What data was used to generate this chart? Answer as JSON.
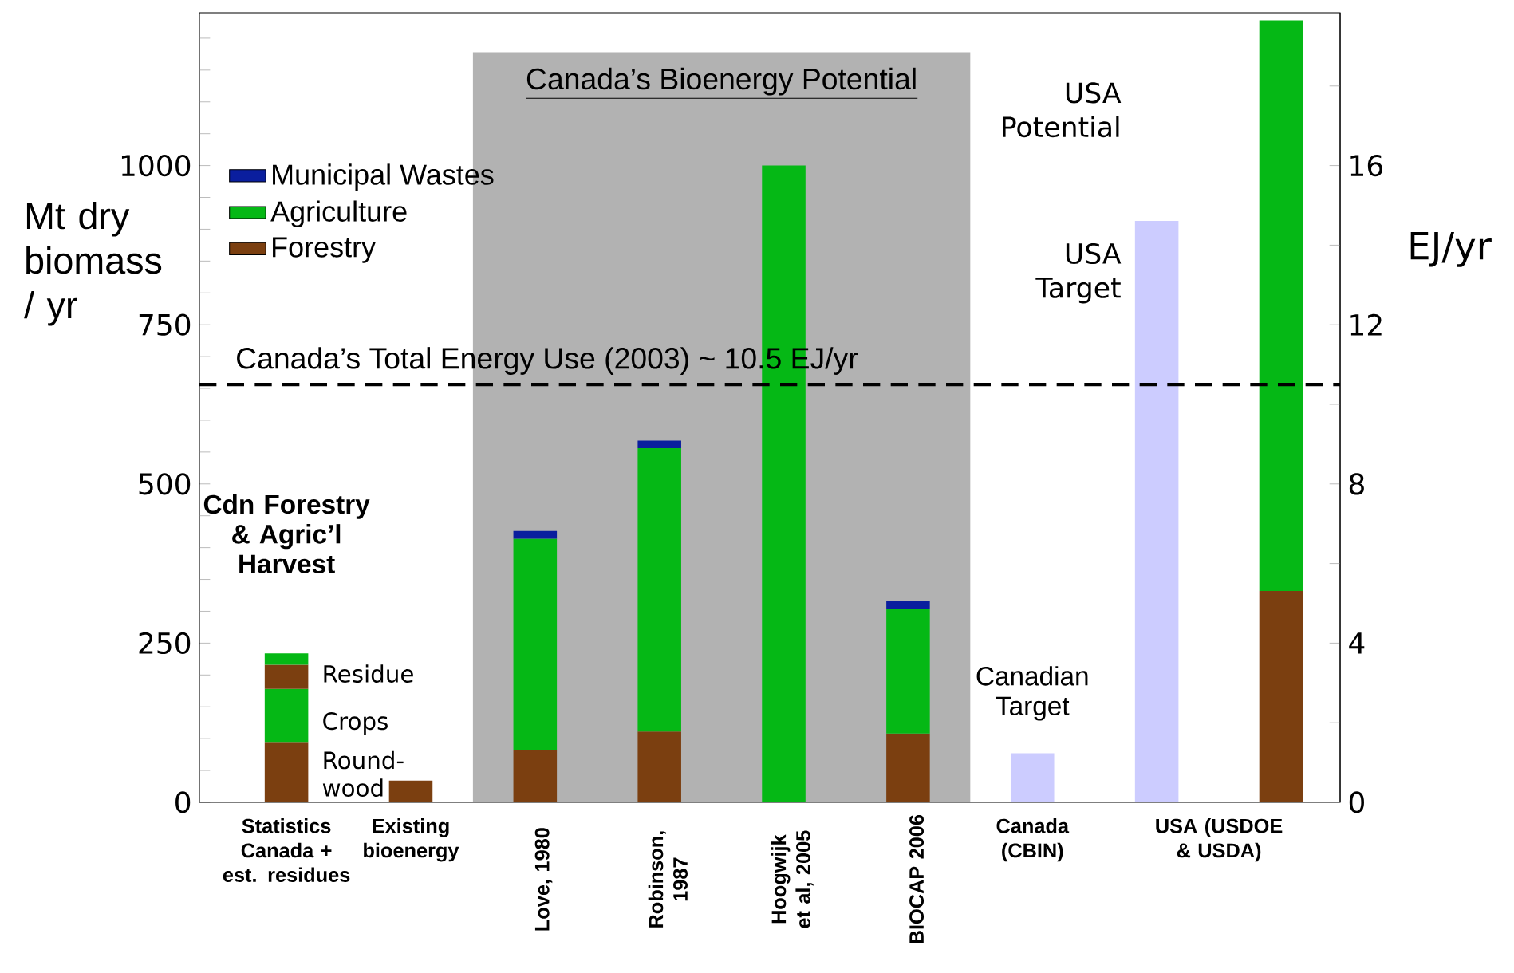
{
  "chart_data": {
    "type": "bar",
    "stacked": true,
    "categories": [
      "Statistics Canada + est. residues",
      "Existing bioenergy",
      "Love, 1980",
      "Robinson, 1987",
      "Hoogwijk et al, 2005",
      "BIOCAP 2006",
      "Canada (CBIN)",
      "USA (USDOE & USDA)",
      null
    ],
    "series": [
      {
        "name": "Forestry",
        "color": "#7b3f10",
        "values": [
          95,
          34,
          82,
          111,
          null,
          108,
          null,
          null,
          332
        ]
      },
      {
        "name": "Agriculture",
        "color": "#05b815",
        "values": [
          83,
          null,
          332,
          445,
          1000,
          196,
          null,
          null,
          896
        ]
      },
      {
        "color": "#7b3f10",
        "values": [
          38,
          null,
          null,
          null,
          null,
          null,
          null,
          null,
          null
        ]
      },
      {
        "color": "#05b815",
        "values": [
          18,
          null,
          null,
          null,
          null,
          null,
          null,
          null,
          null
        ]
      },
      {
        "name": "Municipal Wastes",
        "color": "#0a1e9e",
        "values": [
          null,
          null,
          12,
          12,
          null,
          12,
          null,
          null,
          null
        ]
      },
      {
        "color": "#ccccff",
        "values": [
          null,
          null,
          null,
          null,
          null,
          null,
          77,
          913,
          null
        ]
      }
    ],
    "ylabel": "Mt dry biomass / yr",
    "y2label": "EJ/yr",
    "ylim": [
      0,
      1240
    ],
    "yticks": [
      0,
      {
        "value": 50,
        "label": null
      },
      {
        "value": 100,
        "label": null
      },
      {
        "value": 150,
        "label": null
      },
      {
        "value": 200,
        "label": null
      },
      250,
      {
        "value": 300,
        "label": null
      },
      {
        "value": 350,
        "label": null
      },
      {
        "value": 400,
        "label": null
      },
      {
        "value": 450,
        "label": null
      },
      500,
      {
        "value": 550,
        "label": null
      },
      {
        "value": 600,
        "label": null
      },
      {
        "value": 650,
        "label": null
      },
      {
        "value": 700,
        "label": null
      },
      750,
      {
        "value": 800,
        "label": null
      },
      {
        "value": 850,
        "label": null
      },
      {
        "value": 900,
        "label": null
      },
      {
        "value": 950,
        "label": null
      },
      1000,
      {
        "value": 1050,
        "label": null
      },
      {
        "value": 1100,
        "label": null
      },
      {
        "value": 1150,
        "label": null
      },
      {
        "value": 1200,
        "label": null
      }
    ],
    "y2lim": [
      0,
      19.84
    ],
    "y2ticks": [
      0,
      {
        "value": 2,
        "label": null
      },
      4,
      {
        "value": 6,
        "label": null
      },
      8,
      {
        "value": 10,
        "label": null
      },
      12,
      {
        "value": 14,
        "label": null
      },
      16,
      {
        "value": 18,
        "label": null
      }
    ],
    "ref_lines": [
      {
        "axis": "y2",
        "value": 10.5,
        "label": "Canada’s Total Energy Use (2003) ~ 10.5 EJ/yr",
        "color": "#000000",
        "line_style": "dashed"
      }
    ],
    "bands": [
      {
        "axis": "x",
        "from": "Love, 1980",
        "to": "BIOCAP 2006",
        "label": "Canada’s Bioenergy Potential",
        "color": "#b2b2b2"
      }
    ],
    "annotations": [
      "**Cdn Forestry & Agric’l Harvest**",
      "Residue",
      "Crops",
      "Round-wood",
      "Canadian Target",
      "USA Target",
      "USA Potential"
    ],
    "legend": "top left",
    "grid": false
  }
}
